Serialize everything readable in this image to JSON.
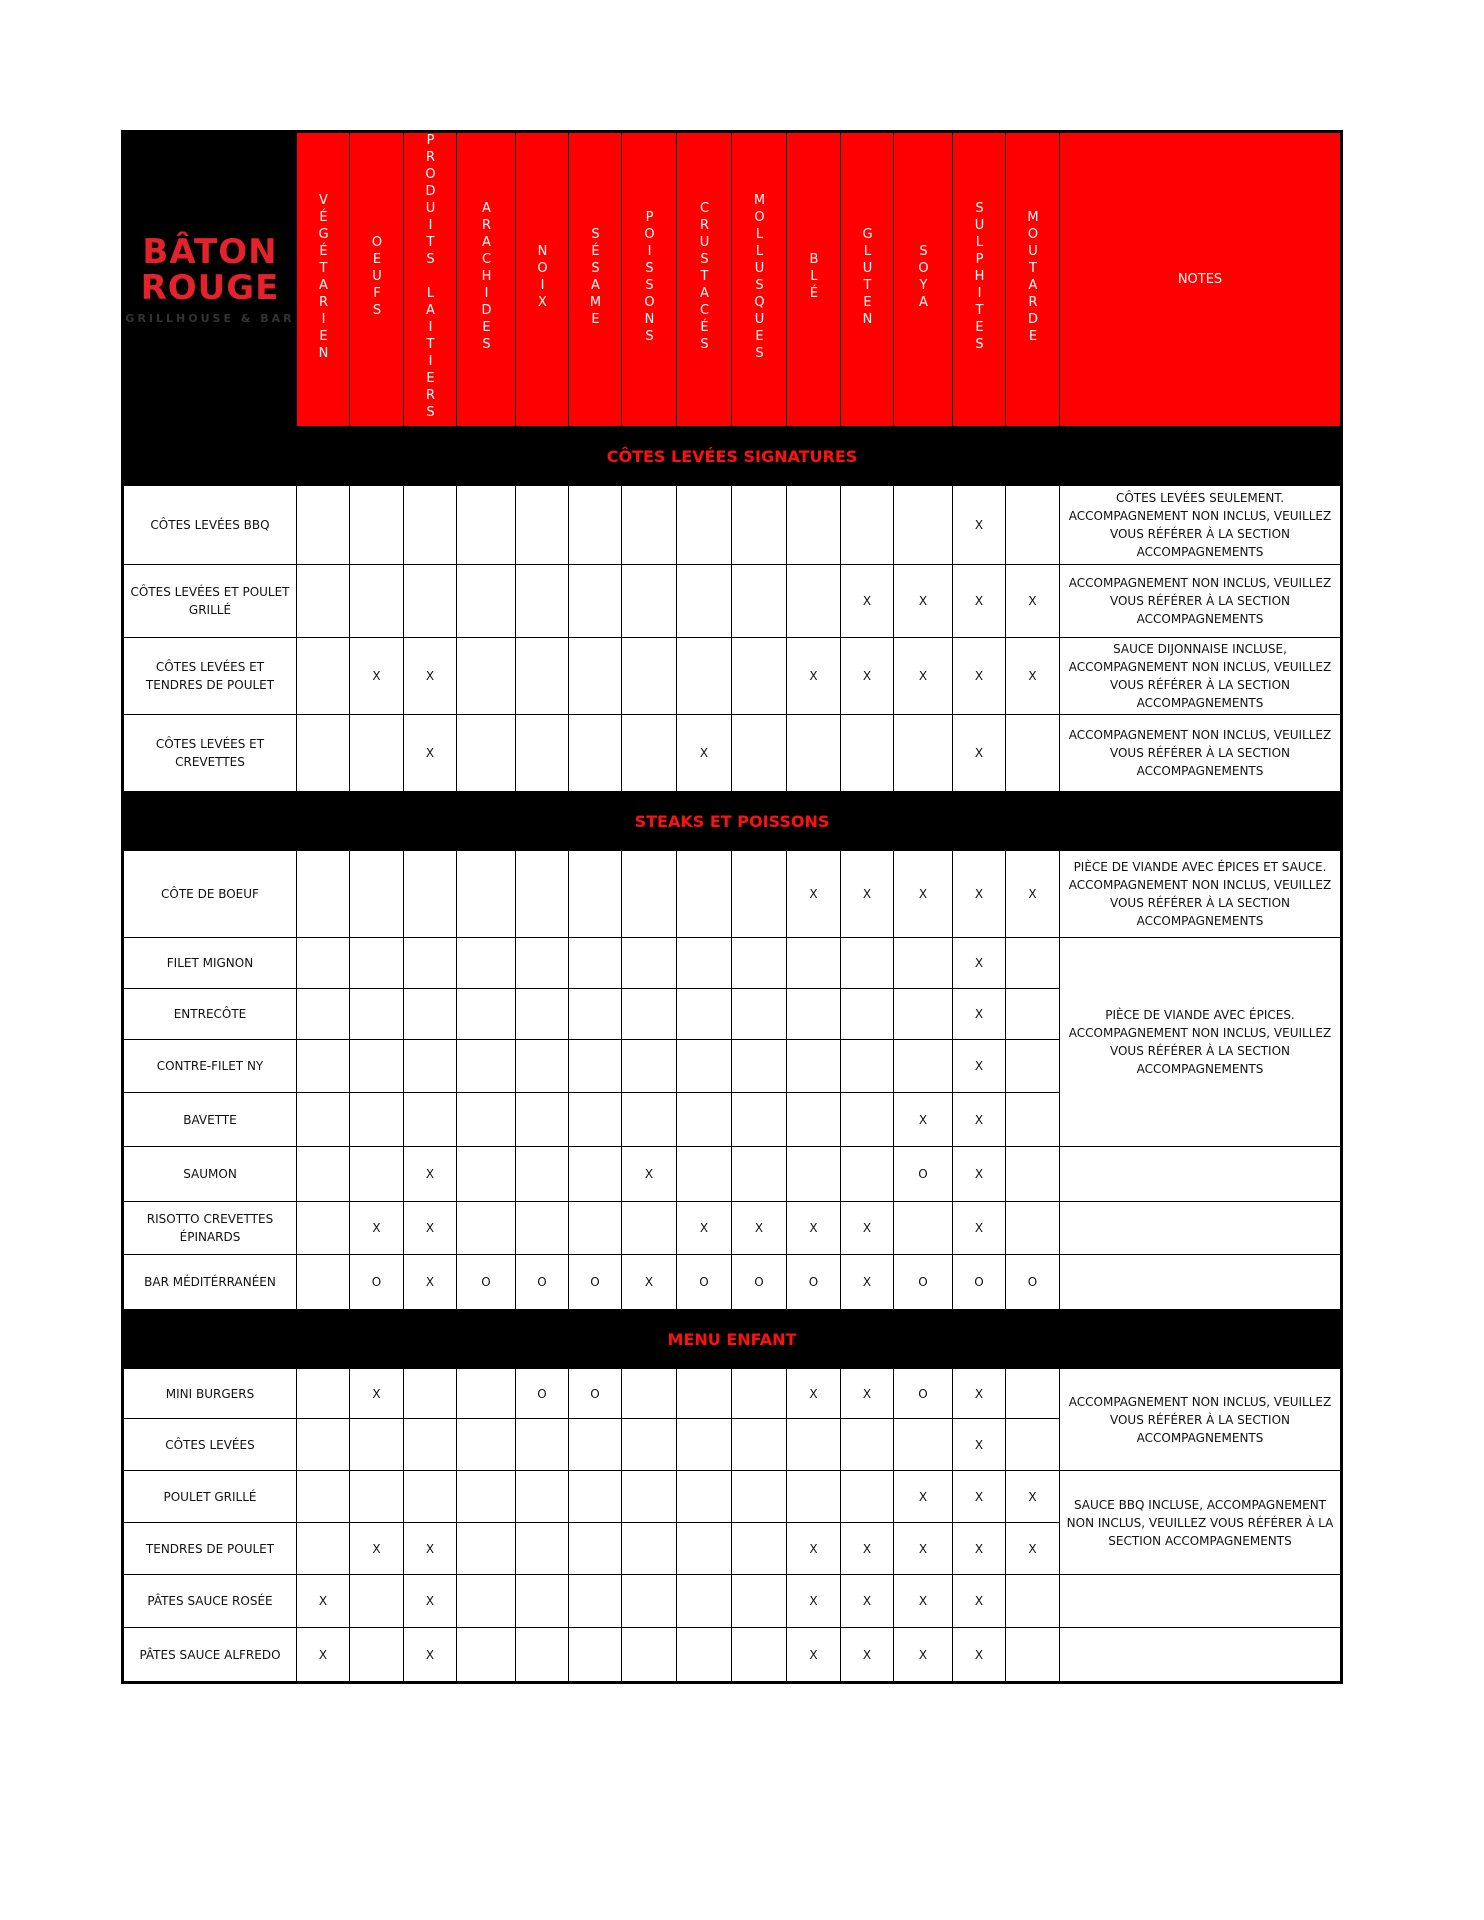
{
  "logo": {
    "line1": "BÂTON",
    "line2": "ROUGE",
    "tagline": "GRILLHOUSE & BAR"
  },
  "columns": [
    "VÉGÉTARIEN",
    "OEUFS",
    "PRODUITS LAITIERS",
    "ARACHIDES",
    "NOIX",
    "SÉSAME",
    "POISSONS",
    "CRUSTACÉS",
    "MOLLUSQUES",
    "BLÉ",
    "GLUTEN",
    "SOYA",
    "SULPHITES",
    "MOUTARDE"
  ],
  "notes_header": "NOTES",
  "colors": {
    "header_red": "#ff0000",
    "band_black": "#000000",
    "brand_red": "#e3222b"
  },
  "sections": [
    {
      "title": "CÔTES LEVÉES SIGNATURES",
      "rows": [
        {
          "name": "CÔTES LEVÉES BBQ",
          "marks": [
            "",
            "",
            "",
            "",
            "",
            "",
            "",
            "",
            "",
            "",
            "",
            "",
            "X",
            ""
          ],
          "note": "CÔTES LEVÉES SEULEMENT. ACCOMPAGNEMENT NON INCLUS, VEUILLEZ VOUS RÉFÉRER À LA SECTION ACCOMPAGNEMENTS",
          "note_rows": 1
        },
        {
          "name": "CÔTES LEVÉES ET POULET GRILLÉ",
          "marks": [
            "",
            "",
            "",
            "",
            "",
            "",
            "",
            "",
            "",
            "",
            "X",
            "X",
            "X",
            "X"
          ],
          "note": "ACCOMPAGNEMENT NON INCLUS, VEUILLEZ VOUS RÉFÉRER À LA SECTION ACCOMPAGNEMENTS",
          "note_rows": 1
        },
        {
          "name": "CÔTES LEVÉES ET TENDRES DE POULET",
          "marks": [
            "",
            "X",
            "X",
            "",
            "",
            "",
            "",
            "",
            "",
            "X",
            "X",
            "X",
            "X",
            "X"
          ],
          "note": "SAUCE DIJONNAISE INCLUSE, ACCOMPAGNEMENT NON INCLUS, VEUILLEZ VOUS RÉFÉRER À LA SECTION ACCOMPAGNEMENTS",
          "note_rows": 1
        },
        {
          "name": "CÔTES LEVÉES ET CREVETTES",
          "marks": [
            "",
            "",
            "X",
            "",
            "",
            "",
            "",
            "X",
            "",
            "",
            "",
            "",
            "X",
            ""
          ],
          "note": "ACCOMPAGNEMENT NON INCLUS, VEUILLEZ VOUS RÉFÉRER À LA SECTION ACCOMPAGNEMENTS",
          "note_rows": 1
        }
      ]
    },
    {
      "title": "STEAKS ET POISSONS",
      "rows": [
        {
          "name": "CÔTE DE BOEUF",
          "marks": [
            "",
            "",
            "",
            "",
            "",
            "",
            "",
            "",
            "",
            "X",
            "X",
            "X",
            "X",
            "X"
          ],
          "note": "PIÈCE DE VIANDE AVEC ÉPICES ET SAUCE. ACCOMPAGNEMENT NON INCLUS, VEUILLEZ VOUS RÉFÉRER À LA SECTION ACCOMPAGNEMENTS",
          "note_rows": 1
        },
        {
          "name": "FILET MIGNON",
          "marks": [
            "",
            "",
            "",
            "",
            "",
            "",
            "",
            "",
            "",
            "",
            "",
            "",
            "X",
            ""
          ],
          "note": "PIÈCE DE VIANDE AVEC ÉPICES. ACCOMPAGNEMENT NON INCLUS, VEUILLEZ VOUS RÉFÉRER À LA SECTION ACCOMPAGNEMENTS",
          "note_rows": 4
        },
        {
          "name": "ENTRECÔTE",
          "marks": [
            "",
            "",
            "",
            "",
            "",
            "",
            "",
            "",
            "",
            "",
            "",
            "",
            "X",
            ""
          ]
        },
        {
          "name": "CONTRE-FILET NY",
          "marks": [
            "",
            "",
            "",
            "",
            "",
            "",
            "",
            "",
            "",
            "",
            "",
            "",
            "X",
            ""
          ]
        },
        {
          "name": "BAVETTE",
          "marks": [
            "",
            "",
            "",
            "",
            "",
            "",
            "",
            "",
            "",
            "",
            "",
            "X",
            "X",
            ""
          ]
        },
        {
          "name": "SAUMON",
          "marks": [
            "",
            "",
            "X",
            "",
            "",
            "",
            "X",
            "",
            "",
            "",
            "",
            "O",
            "X",
            ""
          ],
          "note": "",
          "note_rows": 1
        },
        {
          "name": "RISOTTO CREVETTES ÉPINARDS",
          "marks": [
            "",
            "X",
            "X",
            "",
            "",
            "",
            "",
            "X",
            "X",
            "X",
            "X",
            "",
            "X",
            ""
          ],
          "note": "",
          "note_rows": 1
        },
        {
          "name": "BAR MÉDITÉRRANÉEN",
          "marks": [
            "",
            "O",
            "X",
            "O",
            "O",
            "O",
            "X",
            "O",
            "O",
            "O",
            "X",
            "O",
            "O",
            "O"
          ],
          "note": "",
          "note_rows": 1
        }
      ]
    },
    {
      "title": "MENU ENFANT",
      "rows": [
        {
          "name": "MINI BURGERS",
          "marks": [
            "",
            "X",
            "",
            "",
            "O",
            "O",
            "",
            "",
            "",
            "X",
            "X",
            "O",
            "X",
            ""
          ],
          "note": "ACCOMPAGNEMENT NON INCLUS, VEUILLEZ VOUS RÉFÉRER À LA SECTION ACCOMPAGNEMENTS",
          "note_rows": 2
        },
        {
          "name": "CÔTES LEVÉES",
          "marks": [
            "",
            "",
            "",
            "",
            "",
            "",
            "",
            "",
            "",
            "",
            "",
            "",
            "X",
            ""
          ]
        },
        {
          "name": "POULET GRILLÉ",
          "marks": [
            "",
            "",
            "",
            "",
            "",
            "",
            "",
            "",
            "",
            "",
            "",
            "X",
            "X",
            "X"
          ],
          "note": "SAUCE BBQ INCLUSE, ACCOMPAGNEMENT NON INCLUS, VEUILLEZ VOUS RÉFÉRER À LA SECTION ACCOMPAGNEMENTS",
          "note_rows": 2
        },
        {
          "name": "TENDRES DE POULET",
          "marks": [
            "",
            "X",
            "X",
            "",
            "",
            "",
            "",
            "",
            "",
            "X",
            "X",
            "X",
            "X",
            "X"
          ]
        },
        {
          "name": "PÂTES SAUCE ROSÉE",
          "marks": [
            "X",
            "",
            "X",
            "",
            "",
            "",
            "",
            "",
            "",
            "X",
            "X",
            "X",
            "X",
            ""
          ],
          "note": "",
          "note_rows": 1
        },
        {
          "name": "PÂTES SAUCE ALFREDO",
          "marks": [
            "X",
            "",
            "X",
            "",
            "",
            "",
            "",
            "",
            "",
            "X",
            "X",
            "X",
            "X",
            ""
          ],
          "note": "",
          "note_rows": 1
        }
      ]
    }
  ]
}
